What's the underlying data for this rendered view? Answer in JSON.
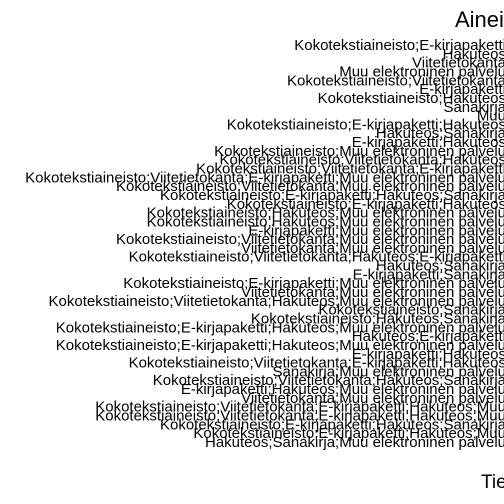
{
  "chart_data": {
    "type": "bar",
    "title": "Aineis",
    "xlabel": "Tie",
    "ylabel": "",
    "grid": false,
    "legend": "none",
    "text_color": "#000000",
    "background": "#ffffff",
    "categories": [
      "Kokotekstiaineisto;E-kirjapaketti",
      "Hakuteos",
      "Viitetietokanta",
      "Muu elektroninen palvelu",
      "Kokotekstiaineisto;Viitetietokanta",
      "E-kirjapaketti",
      "Kokotekstiaineisto;Hakuteos",
      "Sanakirja",
      "Muu",
      "Kokotekstiaineisto;E-kirjapaketti;Hakuteos",
      "Hakuteos;Sanakirja",
      "E-kirjapaketti;Hakuteos",
      "Kokotekstiaineisto;Muu elektroninen palvelu",
      "Kokotekstiaineisto;Viitetietokanta;Hakuteos",
      "Kokotekstiaineisto;Viitetietokanta;E-kirjapaketti",
      "Kokotekstiaineisto;Viitetietokanta;E-kirjapaketti;Muu elektroninen palvelu",
      "Kokotekstiaineisto;Viitetietokanta;Muu elektroninen palvelu",
      "Kokotekstiaineisto;E-kirjapaketti;Hakuteos;Sanakirja",
      "Kokotekstiaineisto;E-kirjapaketti;Hakuteos",
      "Kokotekstiaineisto;Hakuteos;Muu elektroninen palvelu",
      "Kokotekstiaineisto;Hakuteos;Muu elektroninen palvelu",
      "E-kirjapaketti;Muu elektroninen palvelu",
      "Kokotekstiaineisto;Viitetietokanta;Muu elektroninen palvelu",
      "Viitetietokanta;Muu elektroninen palvelu",
      "Kokotekstiaineisto;Viitetietokanta;Hakuteos;E-kirjapaketti",
      "Hakuteos;Sanakirja",
      "E-kirjapaketti;Sanakirja",
      "Kokotekstiaineisto;E-kirjapaketti;Muu elektroninen palvelu",
      "Viitetietokanta;Muu elektroninen palvelu",
      "Kokotekstiaineisto;Viitetietokanta;Hakuteos;Muu elektroninen palvelu",
      "Kokotekstiaineisto;Sanakirja",
      "Kokotekstiaineisto;Hakuteos;Sanakirja",
      "Kokotekstiaineisto;E-kirjapaketti;Hakuteos;Muu elektroninen palvelu",
      "Hakuteos;E-kirjapaketti",
      "Kokotekstiaineisto;E-kirjapaketti;Hakuteos;Muu elektroninen palvelu",
      "E-kirjapaketti;Hakuteos",
      "Kokotekstiaineisto;Viitetietokanta;E-kirjapaketti;Hakuteos",
      "Sanakirja;Muu elektroninen palvelu",
      "Kokotekstiaineisto;Viitetietokanta;Hakuteos;Sanakirja",
      "E-kirjapaketti;Hakuteos;Muu elektroninen palvelu",
      "Viitetietokanta;Muu elektroninen palvelu",
      "Kokotekstiaineisto;Viitetietokanta;E-kirjapaketti;Hakuteos;Muu",
      "Kokotekstiaineisto;Viitetietokanta;E-kirjapaketti;Hakuteos;Muu",
      "Kokotekstiaineisto;E-kirjapaketti;Hakuteos;Sanakirja",
      "Kokotekstiaineisto;E-kirjapaketti;Hakuteos;Muu",
      "Hakuteos;Sanakirja;Muu elektroninen palvelu"
    ]
  }
}
